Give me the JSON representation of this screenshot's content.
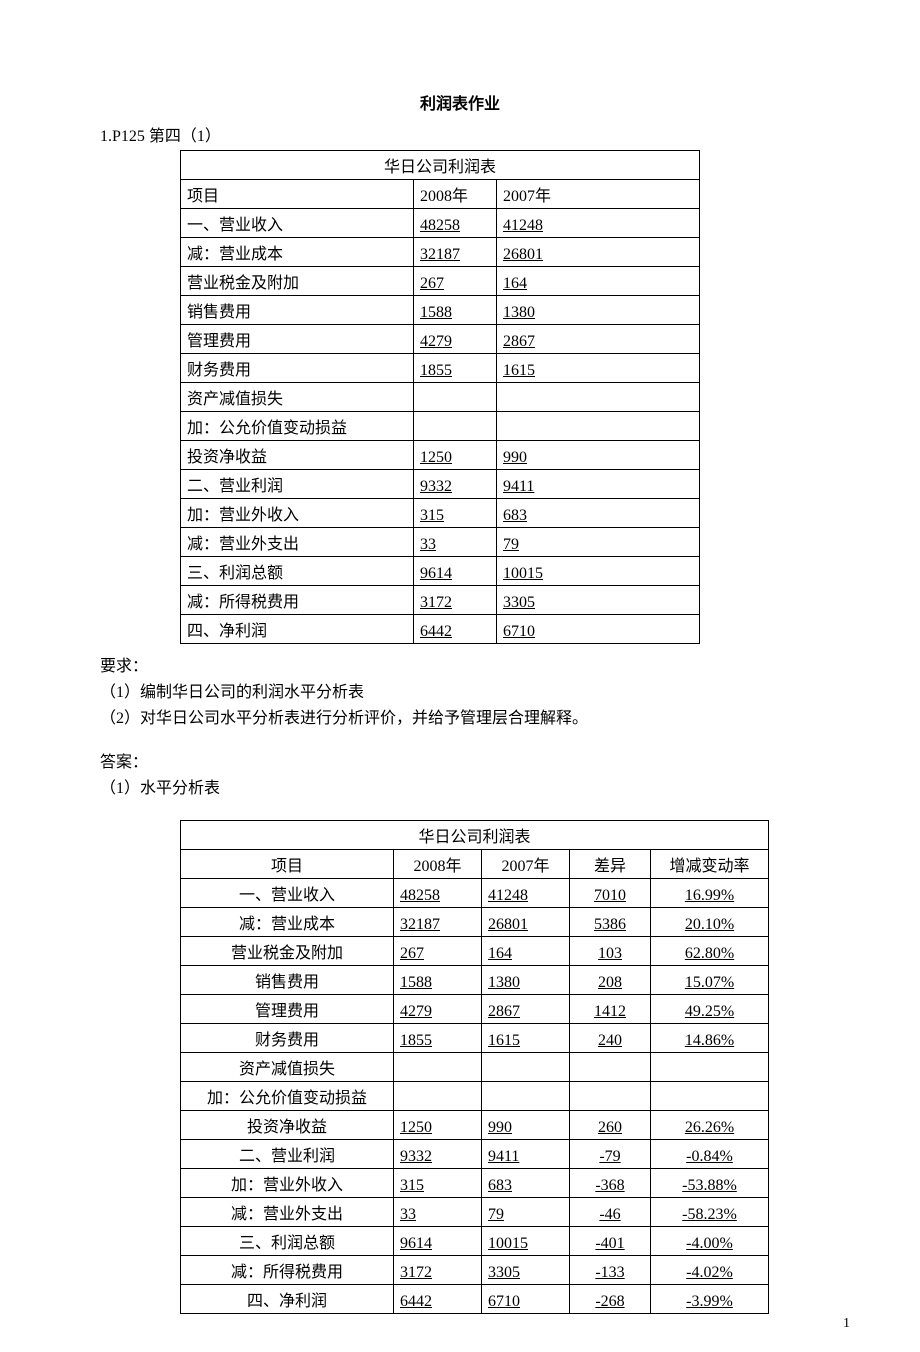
{
  "title": "利润表作业",
  "q1_label": "1.P125 第四（1）",
  "table1": {
    "caption": "华日公司利润表",
    "head": [
      "项目",
      "2008年",
      "2007年"
    ],
    "rows": [
      [
        "一、营业收入",
        "48258",
        "41248"
      ],
      [
        "减：营业成本",
        "32187",
        "26801"
      ],
      [
        "营业税金及附加",
        "267",
        "164"
      ],
      [
        "销售费用",
        "1588",
        "1380"
      ],
      [
        "管理费用",
        "4279",
        "2867"
      ],
      [
        "财务费用",
        "1855",
        "1615"
      ],
      [
        "资产减值损失",
        "",
        ""
      ],
      [
        "加：公允价值变动损益",
        "",
        ""
      ],
      [
        "投资净收益",
        "1250",
        "990"
      ],
      [
        "二、营业利润",
        "9332",
        "9411"
      ],
      [
        "加：营业外收入",
        "315",
        "683"
      ],
      [
        "减：营业外支出",
        "33",
        "79"
      ],
      [
        "三、利润总额",
        "9614",
        "10015"
      ],
      [
        "减：所得税费用",
        "3172",
        "3305"
      ],
      [
        "四、净利润",
        "6442",
        "6710"
      ]
    ]
  },
  "req_label": "要求：",
  "req1": "（1）编制华日公司的利润水平分析表",
  "req2": "（2）对华日公司水平分析表进行分析评价，并给予管理层合理解释。",
  "ans_label": "答案：",
  "ans_sub": "（1）水平分析表",
  "table2": {
    "caption": "华日公司利润表",
    "head": [
      "项目",
      "2008年",
      "2007年",
      "差异",
      "增减变动率"
    ],
    "rows": [
      {
        "c": [
          "一、营业收入",
          "48258",
          "41248",
          "7010",
          "16.99%"
        ],
        "align": "left"
      },
      {
        "c": [
          "减：营业成本",
          "32187",
          "26801",
          "5386",
          "20.10%"
        ]
      },
      {
        "c": [
          "营业税金及附加",
          "267",
          "164",
          "103",
          "62.80%"
        ]
      },
      {
        "c": [
          "销售费用",
          "1588",
          "1380",
          "208",
          "15.07%"
        ]
      },
      {
        "c": [
          "管理费用",
          "4279",
          "2867",
          "1412",
          "49.25%"
        ]
      },
      {
        "c": [
          "财务费用",
          "1855",
          "1615",
          "240",
          "14.86%"
        ]
      },
      {
        "c": [
          "资产减值损失",
          "",
          "",
          "",
          ""
        ]
      },
      {
        "c": [
          "加：公允价值变动损益",
          "",
          "",
          "",
          ""
        ],
        "align": "left"
      },
      {
        "c": [
          "投资净收益",
          "1250",
          "990",
          "260",
          "26.26%"
        ]
      },
      {
        "c": [
          "二、营业利润",
          "9332",
          "9411",
          "-79",
          "-0.84%"
        ],
        "align": "left"
      },
      {
        "c": [
          "加：营业外收入",
          "315",
          "683",
          "-368",
          "-53.88%"
        ]
      },
      {
        "c": [
          "减：营业外支出",
          "33",
          "79",
          "-46",
          "-58.23%"
        ]
      },
      {
        "c": [
          "三、利润总额",
          "9614",
          "10015",
          "-401",
          "-4.00%"
        ],
        "align": "left"
      },
      {
        "c": [
          "减：所得税费用",
          "3172",
          "3305",
          "-133",
          "-4.02%"
        ]
      },
      {
        "c": [
          "四、净利润",
          "6442",
          "6710",
          "-268",
          "-3.99%"
        ],
        "align": "left"
      }
    ]
  },
  "page_number": "1"
}
